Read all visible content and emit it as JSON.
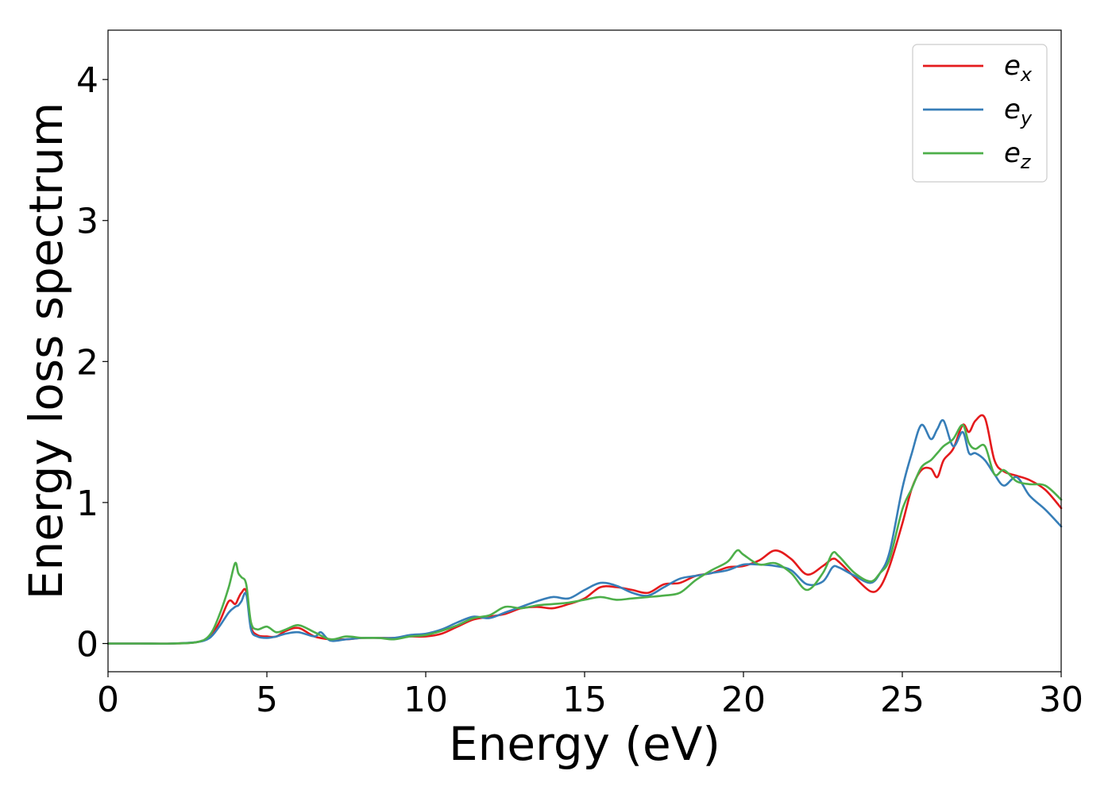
{
  "chart_data": {
    "type": "line",
    "title": "",
    "xlabel": "Energy (eV)",
    "ylabel": "Energy loss spectrum",
    "xlim": [
      0,
      30
    ],
    "ylim": [
      -0.2,
      4.35
    ],
    "xticks": [
      0,
      5,
      10,
      15,
      20,
      25,
      30
    ],
    "yticks": [
      0,
      1,
      2,
      3,
      4
    ],
    "grid": false,
    "legend_position": "top-right",
    "series": [
      {
        "name": "e_x",
        "label_main": "e",
        "label_sub": "x",
        "color": "#e41a1c",
        "x": [
          0,
          1,
          2,
          2.8,
          3.2,
          3.5,
          3.8,
          4.0,
          4.1,
          4.2,
          4.35,
          4.5,
          4.7,
          5.0,
          5.3,
          5.6,
          6.0,
          6.5,
          7.0,
          7.5,
          8.0,
          8.5,
          9.0,
          9.5,
          10.0,
          10.5,
          11.0,
          11.5,
          12.0,
          12.5,
          13.0,
          13.5,
          14.0,
          14.5,
          15.0,
          15.5,
          16.0,
          16.5,
          17.0,
          17.5,
          18.0,
          18.5,
          19.0,
          19.5,
          20.0,
          20.5,
          21.0,
          21.5,
          22.0,
          22.5,
          22.8,
          23.0,
          23.5,
          24.0,
          24.3,
          24.6,
          25.0,
          25.3,
          25.6,
          25.9,
          26.1,
          26.3,
          26.6,
          26.9,
          27.1,
          27.3,
          27.6,
          27.9,
          28.2,
          28.6,
          29.0,
          29.5,
          30.0
        ],
        "y": [
          0,
          0,
          0,
          0.01,
          0.05,
          0.15,
          0.3,
          0.28,
          0.32,
          0.36,
          0.37,
          0.12,
          0.06,
          0.05,
          0.05,
          0.09,
          0.11,
          0.05,
          0.03,
          0.03,
          0.04,
          0.04,
          0.04,
          0.05,
          0.05,
          0.07,
          0.12,
          0.17,
          0.19,
          0.21,
          0.25,
          0.26,
          0.25,
          0.28,
          0.32,
          0.4,
          0.4,
          0.38,
          0.36,
          0.42,
          0.43,
          0.48,
          0.5,
          0.54,
          0.55,
          0.59,
          0.66,
          0.6,
          0.49,
          0.55,
          0.6,
          0.58,
          0.47,
          0.37,
          0.4,
          0.55,
          0.85,
          1.1,
          1.23,
          1.24,
          1.18,
          1.3,
          1.38,
          1.55,
          1.5,
          1.58,
          1.6,
          1.3,
          1.22,
          1.19,
          1.16,
          1.09,
          0.96
        ]
      },
      {
        "name": "e_y",
        "label_main": "e",
        "label_sub": "y",
        "color": "#377eb8",
        "x": [
          0,
          1,
          2,
          2.8,
          3.2,
          3.5,
          3.8,
          4.0,
          4.1,
          4.2,
          4.35,
          4.5,
          4.7,
          5.0,
          5.3,
          5.6,
          6.0,
          6.5,
          6.7,
          7.0,
          7.5,
          8.0,
          8.5,
          9.0,
          9.5,
          10.0,
          10.5,
          11.0,
          11.5,
          12.0,
          12.5,
          13.0,
          13.5,
          14.0,
          14.5,
          15.0,
          15.5,
          16.0,
          16.5,
          17.0,
          17.5,
          18.0,
          18.5,
          19.0,
          19.5,
          20.0,
          20.5,
          21.0,
          21.5,
          22.0,
          22.5,
          22.8,
          23.0,
          23.5,
          24.0,
          24.3,
          24.6,
          25.0,
          25.3,
          25.6,
          25.9,
          26.1,
          26.3,
          26.6,
          26.9,
          27.1,
          27.3,
          27.6,
          27.9,
          28.2,
          28.6,
          29.0,
          29.5,
          30.0
        ],
        "y": [
          0,
          0,
          0,
          0.01,
          0.04,
          0.12,
          0.22,
          0.26,
          0.27,
          0.3,
          0.35,
          0.1,
          0.05,
          0.04,
          0.05,
          0.07,
          0.08,
          0.05,
          0.08,
          0.02,
          0.03,
          0.04,
          0.04,
          0.04,
          0.06,
          0.07,
          0.1,
          0.15,
          0.19,
          0.18,
          0.22,
          0.26,
          0.3,
          0.33,
          0.32,
          0.38,
          0.43,
          0.41,
          0.36,
          0.34,
          0.4,
          0.46,
          0.48,
          0.5,
          0.52,
          0.56,
          0.56,
          0.55,
          0.52,
          0.42,
          0.44,
          0.54,
          0.54,
          0.48,
          0.43,
          0.5,
          0.65,
          1.1,
          1.35,
          1.55,
          1.45,
          1.52,
          1.58,
          1.4,
          1.5,
          1.35,
          1.35,
          1.3,
          1.2,
          1.12,
          1.18,
          1.05,
          0.95,
          0.83
        ]
      },
      {
        "name": "e_z",
        "label_main": "e",
        "label_sub": "z",
        "color": "#4daf4a",
        "x": [
          0,
          1,
          2,
          2.8,
          3.2,
          3.5,
          3.8,
          4.0,
          4.1,
          4.2,
          4.35,
          4.5,
          4.7,
          5.0,
          5.3,
          5.6,
          6.0,
          6.5,
          7.0,
          7.5,
          8.0,
          8.5,
          9.0,
          9.5,
          10.0,
          10.5,
          11.0,
          11.5,
          12.0,
          12.5,
          13.0,
          13.5,
          14.0,
          14.5,
          15.0,
          15.5,
          16.0,
          16.5,
          17.0,
          17.5,
          18.0,
          18.5,
          19.0,
          19.5,
          19.8,
          20.0,
          20.5,
          21.0,
          21.5,
          22.0,
          22.5,
          22.8,
          23.0,
          23.5,
          24.0,
          24.3,
          24.6,
          25.0,
          25.3,
          25.6,
          25.9,
          26.1,
          26.3,
          26.6,
          26.9,
          27.1,
          27.3,
          27.6,
          27.9,
          28.2,
          28.6,
          29.0,
          29.5,
          30.0
        ],
        "y": [
          0,
          0,
          0,
          0.01,
          0.06,
          0.2,
          0.4,
          0.57,
          0.5,
          0.47,
          0.42,
          0.15,
          0.1,
          0.12,
          0.08,
          0.1,
          0.13,
          0.08,
          0.03,
          0.05,
          0.04,
          0.04,
          0.03,
          0.05,
          0.06,
          0.09,
          0.13,
          0.18,
          0.2,
          0.26,
          0.25,
          0.27,
          0.28,
          0.29,
          0.31,
          0.33,
          0.31,
          0.32,
          0.33,
          0.34,
          0.36,
          0.45,
          0.52,
          0.58,
          0.66,
          0.63,
          0.56,
          0.57,
          0.5,
          0.38,
          0.5,
          0.64,
          0.62,
          0.5,
          0.44,
          0.5,
          0.6,
          0.95,
          1.1,
          1.25,
          1.3,
          1.35,
          1.4,
          1.45,
          1.55,
          1.42,
          1.38,
          1.4,
          1.2,
          1.23,
          1.15,
          1.13,
          1.12,
          1.02
        ]
      }
    ]
  }
}
